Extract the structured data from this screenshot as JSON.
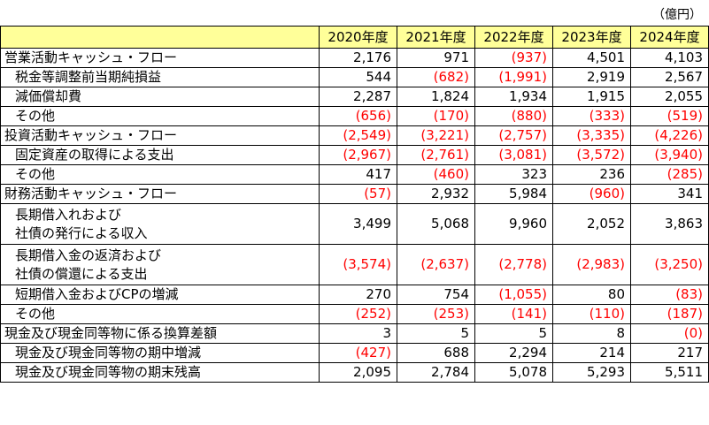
{
  "unit_label": "（億円）",
  "columns": [
    "2020年度",
    "2021年度",
    "2022年度",
    "2023年度",
    "2024年度"
  ],
  "rows": [
    {
      "label": "営業活動キャッシュ・フロー",
      "kind": "section",
      "values": [
        "2,176",
        "971",
        "(937)",
        "4,501",
        "4,103"
      ]
    },
    {
      "label": "税金等調整前当期純損益",
      "kind": "sub",
      "values": [
        "544",
        "(682)",
        "(1,991)",
        "2,919",
        "2,567"
      ]
    },
    {
      "label": "減価償却費",
      "kind": "sub",
      "values": [
        "2,287",
        "1,824",
        "1,934",
        "1,915",
        "2,055"
      ]
    },
    {
      "label": "その他",
      "kind": "sub",
      "values": [
        "(656)",
        "(170)",
        "(880)",
        "(333)",
        "(519)"
      ]
    },
    {
      "label": "投資活動キャッシュ・フロー",
      "kind": "section",
      "values": [
        "(2,549)",
        "(3,221)",
        "(2,757)",
        "(3,335)",
        "(4,226)"
      ]
    },
    {
      "label": "固定資産の取得による支出",
      "kind": "sub",
      "values": [
        "(2,967)",
        "(2,761)",
        "(3,081)",
        "(3,572)",
        "(3,940)"
      ]
    },
    {
      "label": "その他",
      "kind": "sub",
      "values": [
        "417",
        "(460)",
        "323",
        "236",
        "(285)"
      ]
    },
    {
      "label": "財務活動キャッシュ・フロー",
      "kind": "section",
      "values": [
        "(57)",
        "2,932",
        "5,984",
        "(960)",
        "341"
      ]
    },
    {
      "label": "長期借入れおよび\n社債の発行による収入",
      "kind": "sub-tall",
      "values": [
        "3,499",
        "5,068",
        "9,960",
        "2,052",
        "3,863"
      ]
    },
    {
      "label": "長期借入金の返済および\n社債の償還による支出",
      "kind": "sub-tall",
      "values": [
        "(3,574)",
        "(2,637)",
        "(2,778)",
        "(2,983)",
        "(3,250)"
      ]
    },
    {
      "label": "短期借入金およびCPの増減",
      "kind": "sub",
      "values": [
        "270",
        "754",
        "(1,055)",
        "80",
        "(83)"
      ]
    },
    {
      "label": "その他",
      "kind": "sub",
      "values": [
        "(252)",
        "(253)",
        "(141)",
        "(110)",
        "(187)"
      ]
    },
    {
      "label": "現金及び現金同等物に係る換算差額",
      "kind": "section",
      "values": [
        "3",
        "5",
        "5",
        "8",
        "(0)"
      ]
    },
    {
      "label": "現金及び現金同等物の期中増減",
      "kind": "sub",
      "values": [
        "(427)",
        "688",
        "2,294",
        "214",
        "217"
      ]
    },
    {
      "label": "現金及び現金同等物の期末残高",
      "kind": "sub",
      "values": [
        "2,095",
        "2,784",
        "5,078",
        "5,293",
        "5,511"
      ]
    }
  ]
}
